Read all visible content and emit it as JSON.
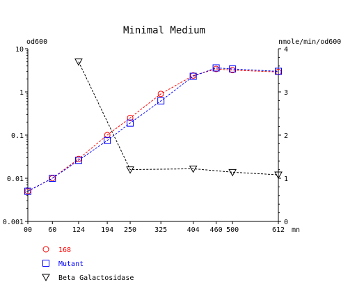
{
  "chart_data": {
    "type": "line",
    "title": "Minimal Medium",
    "ylabel_left": "od600",
    "ylabel_right": "nmole/min/od600",
    "x_unit": "mn",
    "x_ticks": [
      0,
      60,
      124,
      194,
      250,
      325,
      404,
      460,
      500,
      612
    ],
    "x_tick_labels": [
      "00",
      "60",
      "124",
      "194",
      "250",
      "325",
      "404",
      "460",
      "500",
      "612"
    ],
    "xlim": [
      0,
      612
    ],
    "y_left_scale": "log",
    "ylim_left": [
      0.001,
      10
    ],
    "y_left_ticks": [
      10,
      1,
      0.1,
      0.01,
      0.001
    ],
    "y_left_tick_labels": [
      "10",
      "1",
      "0.1",
      "0.01",
      "0.001"
    ],
    "ylim_right": [
      0,
      4
    ],
    "y_right_ticks": [
      0,
      1,
      2,
      3,
      4
    ],
    "y_right_tick_labels": [
      "0",
      "1",
      "2",
      "3",
      "4"
    ],
    "grid": false,
    "legend_position": "bottom-left",
    "series": [
      {
        "name": "168",
        "axis": "left",
        "color": "#ff0000",
        "marker": "circle",
        "x": [
          0,
          60,
          124,
          194,
          250,
          325,
          404,
          460,
          500,
          612
        ],
        "y": [
          0.005,
          0.01,
          0.028,
          0.1,
          0.25,
          0.9,
          2.4,
          3.4,
          3.2,
          2.9
        ]
      },
      {
        "name": "Mutant",
        "axis": "left",
        "color": "#0000ff",
        "marker": "square",
        "x": [
          0,
          60,
          124,
          194,
          250,
          325,
          404,
          460,
          500,
          612
        ],
        "y": [
          0.005,
          0.01,
          0.026,
          0.075,
          0.19,
          0.62,
          2.3,
          3.6,
          3.4,
          3.0
        ]
      },
      {
        "name": "Beta Galactosidase",
        "axis": "right",
        "color": "#000000",
        "marker": "triangle-down",
        "x": [
          124,
          250,
          404,
          500,
          612
        ],
        "y": [
          3.7,
          1.2,
          1.22,
          1.14,
          1.08
        ]
      }
    ]
  }
}
